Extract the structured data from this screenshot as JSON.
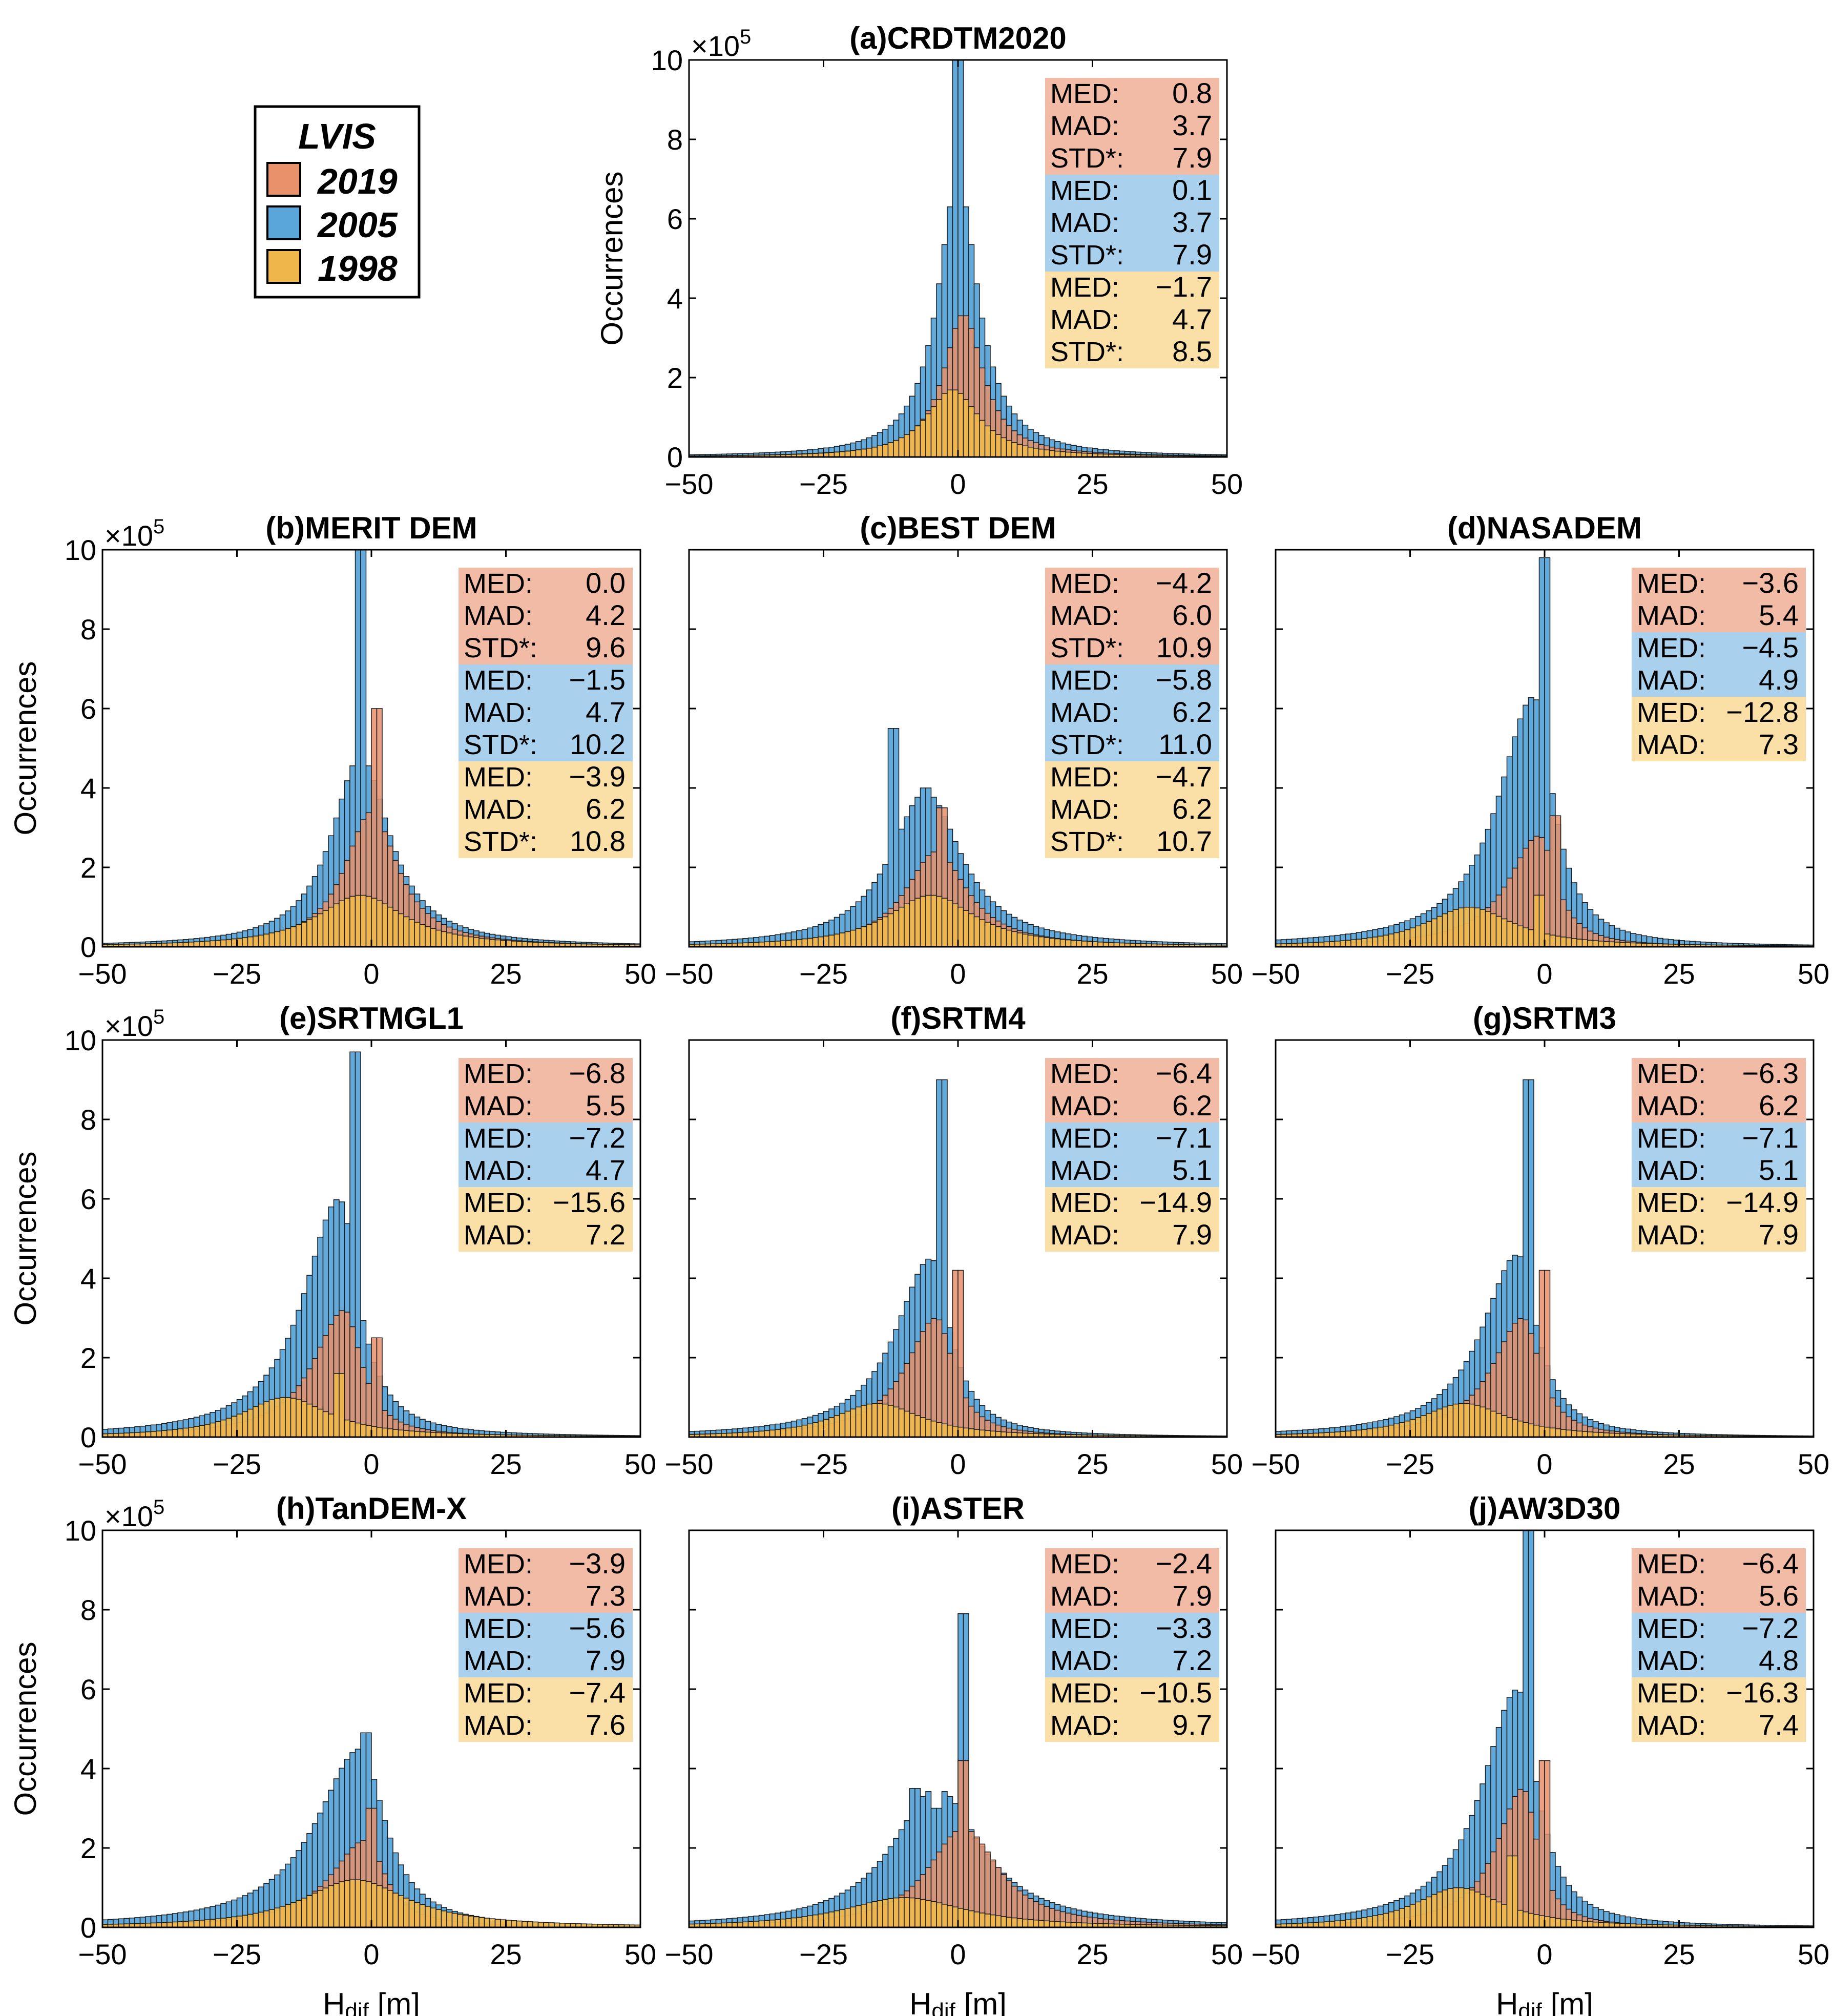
{
  "figure": {
    "legend": {
      "title": "LVIS",
      "entries": [
        {
          "label": "2019",
          "color": "#E8916B"
        },
        {
          "label": "2005",
          "color": "#5AA5D9"
        },
        {
          "label": "1998",
          "color": "#EFB64C"
        }
      ]
    },
    "box_colors": {
      "2019": "#F2BBA6",
      "2005": "#A9D1EE",
      "1998": "#FADFA6"
    },
    "axis_label_y": "Occurrences",
    "axis_label_x_main": "H",
    "axis_label_x_sub": "dif",
    "axis_label_x_unit": " [m]",
    "exponent_base": "×10",
    "exponent_power": "5"
  },
  "chart_data": [
    {
      "type": "bar",
      "title": "(a)CRDTM2020",
      "xlim": [
        -50,
        50
      ],
      "ylim": [
        0,
        10
      ],
      "xticks": [
        "−50",
        "−25",
        "0",
        "25",
        "50"
      ],
      "yticks": [
        "0",
        "2",
        "4",
        "6",
        "8",
        "10"
      ],
      "y_multiplier": "×10^5",
      "stats": [
        {
          "year": "2019",
          "rows": [
            {
              "label": "MED:",
              "value": "0.8"
            },
            {
              "label": "MAD:",
              "value": "3.7"
            },
            {
              "label": "STD*:",
              "value": "7.9"
            }
          ]
        },
        {
          "year": "2005",
          "rows": [
            {
              "label": "MED:",
              "value": "0.1"
            },
            {
              "label": "MAD:",
              "value": "3.7"
            },
            {
              "label": "STD*:",
              "value": "7.9"
            }
          ]
        },
        {
          "year": "1998",
          "rows": [
            {
              "label": "MED:",
              "value": "−1.7"
            },
            {
              "label": "MAD:",
              "value": "4.7"
            },
            {
              "label": "STD*:",
              "value": "8.5"
            }
          ]
        }
      ],
      "series": [
        {
          "name": "2005",
          "peak": 7.0,
          "center": 0,
          "width": 4.5,
          "spikes": [
            [
              0,
              10.0
            ]
          ]
        },
        {
          "name": "2019",
          "peak": 3.6,
          "center": 1,
          "width": 4.5,
          "spikes": []
        },
        {
          "name": "1998",
          "peak": 1.7,
          "center": -1,
          "width": 6,
          "spikes": []
        }
      ]
    },
    {
      "type": "bar",
      "title": "(b)MERIT DEM",
      "xlim": [
        -50,
        50
      ],
      "ylim": [
        0,
        10
      ],
      "xticks": [
        "−50",
        "−25",
        "0",
        "25",
        "50"
      ],
      "yticks": [
        "0",
        "2",
        "4",
        "6",
        "8",
        "10"
      ],
      "y_multiplier": "×10^5",
      "stats": [
        {
          "year": "2019",
          "rows": [
            {
              "label": "MED:",
              "value": "0.0"
            },
            {
              "label": "MAD:",
              "value": "4.2"
            },
            {
              "label": "STD*:",
              "value": "9.6"
            }
          ]
        },
        {
          "year": "2005",
          "rows": [
            {
              "label": "MED:",
              "value": "−1.5"
            },
            {
              "label": "MAD:",
              "value": "4.7"
            },
            {
              "label": "STD*:",
              "value": "10.2"
            }
          ]
        },
        {
          "year": "1998",
          "rows": [
            {
              "label": "MED:",
              "value": "−3.9"
            },
            {
              "label": "MAD:",
              "value": "6.2"
            },
            {
              "label": "STD*:",
              "value": "10.8"
            }
          ]
        }
      ],
      "series": [
        {
          "name": "2005",
          "peak": 4.8,
          "center": -2,
          "width": 6.5,
          "spikes": [
            [
              -2,
              10.0
            ]
          ]
        },
        {
          "name": "2019",
          "peak": 3.4,
          "center": 0,
          "width": 6,
          "spikes": [
            [
              1,
              6.0
            ]
          ]
        },
        {
          "name": "1998",
          "peak": 1.3,
          "center": -2,
          "width": 10,
          "spikes": []
        }
      ]
    },
    {
      "type": "bar",
      "title": "(c)BEST DEM",
      "xlim": [
        -50,
        50
      ],
      "ylim": [
        0,
        10
      ],
      "xticks": [
        "−50",
        "−25",
        "0",
        "25",
        "50"
      ],
      "yticks": [
        "0",
        "2",
        "4",
        "6",
        "8",
        "10"
      ],
      "y_multiplier": "×10^5",
      "stats": [
        {
          "year": "2019",
          "rows": [
            {
              "label": "MED:",
              "value": "−4.2"
            },
            {
              "label": "MAD:",
              "value": "6.0"
            },
            {
              "label": "STD*:",
              "value": "10.9"
            }
          ]
        },
        {
          "year": "2005",
          "rows": [
            {
              "label": "MED:",
              "value": "−5.8"
            },
            {
              "label": "MAD:",
              "value": "6.2"
            },
            {
              "label": "STD*:",
              "value": "11.0"
            }
          ]
        },
        {
          "year": "1998",
          "rows": [
            {
              "label": "MED:",
              "value": "−4.7"
            },
            {
              "label": "MAD:",
              "value": "6.2"
            },
            {
              "label": "STD*:",
              "value": "10.7"
            }
          ]
        }
      ],
      "series": [
        {
          "name": "2005",
          "peak": 3.9,
          "center": -6,
          "width": 8,
          "spikes": [
            [
              -12,
              5.5
            ],
            [
              -6,
              4.0
            ]
          ]
        },
        {
          "name": "2019",
          "peak": 2.4,
          "center": -4,
          "width": 7,
          "spikes": [
            [
              -3,
              3.5
            ]
          ]
        },
        {
          "name": "1998",
          "peak": 1.3,
          "center": -5,
          "width": 10,
          "spikes": []
        }
      ]
    },
    {
      "type": "bar",
      "title": "(d)NASADEM",
      "xlim": [
        -50,
        50
      ],
      "ylim": [
        0,
        10
      ],
      "xticks": [
        "−50",
        "−25",
        "0",
        "25",
        "50"
      ],
      "yticks": [
        "0",
        "2",
        "4",
        "6",
        "8",
        "10"
      ],
      "y_multiplier": "×10^5",
      "stats": [
        {
          "year": "2019",
          "rows": [
            {
              "label": "MED:",
              "value": "−3.6"
            },
            {
              "label": "MAD:",
              "value": "5.4"
            }
          ]
        },
        {
          "year": "2005",
          "rows": [
            {
              "label": "MED:",
              "value": "−4.5"
            },
            {
              "label": "MAD:",
              "value": "4.9"
            }
          ]
        },
        {
          "year": "1998",
          "rows": [
            {
              "label": "MED:",
              "value": "−12.8"
            },
            {
              "label": "MAD:",
              "value": "7.3"
            }
          ]
        }
      ],
      "series": [
        {
          "name": "2005",
          "peak": 6.3,
          "center": -2,
          "width": 8,
          "skew": true,
          "spikes": [
            [
              0,
              9.8
            ]
          ]
        },
        {
          "name": "2019",
          "peak": 2.8,
          "center": -1,
          "width": 7,
          "skew": true,
          "spikes": [
            [
              2,
              3.3
            ]
          ]
        },
        {
          "name": "1998",
          "peak": 1.0,
          "center": -14,
          "width": 10,
          "spikes": [
            [
              -1,
              1.3
            ]
          ]
        }
      ]
    },
    {
      "type": "bar",
      "title": "(e)SRTMGL1",
      "xlim": [
        -50,
        50
      ],
      "ylim": [
        0,
        10
      ],
      "xticks": [
        "−50",
        "−25",
        "0",
        "25",
        "50"
      ],
      "yticks": [
        "0",
        "2",
        "4",
        "6",
        "8",
        "10"
      ],
      "y_multiplier": "×10^5",
      "stats": [
        {
          "year": "2019",
          "rows": [
            {
              "label": "MED:",
              "value": "−6.8"
            },
            {
              "label": "MAD:",
              "value": "5.5"
            }
          ]
        },
        {
          "year": "2005",
          "rows": [
            {
              "label": "MED:",
              "value": "−7.2"
            },
            {
              "label": "MAD:",
              "value": "4.7"
            }
          ]
        },
        {
          "year": "1998",
          "rows": [
            {
              "label": "MED:",
              "value": "−15.6"
            },
            {
              "label": "MAD:",
              "value": "7.2"
            }
          ]
        }
      ],
      "series": [
        {
          "name": "2005",
          "peak": 6.0,
          "center": -6,
          "width": 8,
          "skew": true,
          "spikes": [
            [
              -3,
              9.7
            ]
          ]
        },
        {
          "name": "2019",
          "peak": 3.2,
          "center": -5,
          "width": 7,
          "skew": true,
          "spikes": [
            [
              1,
              2.5
            ]
          ]
        },
        {
          "name": "1998",
          "peak": 1.0,
          "center": -16,
          "width": 10,
          "spikes": [
            [
              -6,
              1.6
            ]
          ]
        }
      ]
    },
    {
      "type": "bar",
      "title": "(f)SRTM4",
      "xlim": [
        -50,
        50
      ],
      "ylim": [
        0,
        10
      ],
      "xticks": [
        "−50",
        "−25",
        "0",
        "25",
        "50"
      ],
      "yticks": [
        "0",
        "2",
        "4",
        "6",
        "8",
        "10"
      ],
      "y_multiplier": "×10^5",
      "stats": [
        {
          "year": "2019",
          "rows": [
            {
              "label": "MED:",
              "value": "−6.4"
            },
            {
              "label": "MAD:",
              "value": "6.2"
            }
          ]
        },
        {
          "year": "2005",
          "rows": [
            {
              "label": "MED:",
              "value": "−7.1"
            },
            {
              "label": "MAD:",
              "value": "5.1"
            }
          ]
        },
        {
          "year": "1998",
          "rows": [
            {
              "label": "MED:",
              "value": "−14.9"
            },
            {
              "label": "MAD:",
              "value": "7.9"
            }
          ]
        }
      ],
      "series": [
        {
          "name": "2005",
          "peak": 4.5,
          "center": -5,
          "width": 8,
          "skew": true,
          "spikes": [
            [
              -3,
              9.0
            ]
          ]
        },
        {
          "name": "2019",
          "peak": 3.0,
          "center": -4,
          "width": 7,
          "skew": true,
          "spikes": [
            [
              0,
              4.2
            ]
          ]
        },
        {
          "name": "1998",
          "peak": 0.85,
          "center": -15,
          "width": 10,
          "spikes": []
        }
      ]
    },
    {
      "type": "bar",
      "title": "(g)SRTM3",
      "xlim": [
        -50,
        50
      ],
      "ylim": [
        0,
        10
      ],
      "xticks": [
        "−50",
        "−25",
        "0",
        "25",
        "50"
      ],
      "yticks": [
        "0",
        "2",
        "4",
        "6",
        "8",
        "10"
      ],
      "y_multiplier": "×10^5",
      "stats": [
        {
          "year": "2019",
          "rows": [
            {
              "label": "MED:",
              "value": "−6.3"
            },
            {
              "label": "MAD:",
              "value": "6.2"
            }
          ]
        },
        {
          "year": "2005",
          "rows": [
            {
              "label": "MED:",
              "value": "−7.1"
            },
            {
              "label": "MAD:",
              "value": "5.1"
            }
          ]
        },
        {
          "year": "1998",
          "rows": [
            {
              "label": "MED:",
              "value": "−14.9"
            },
            {
              "label": "MAD:",
              "value": "7.9"
            }
          ]
        }
      ],
      "series": [
        {
          "name": "2005",
          "peak": 4.6,
          "center": -5,
          "width": 8,
          "skew": true,
          "spikes": [
            [
              -3,
              9.0
            ]
          ]
        },
        {
          "name": "2019",
          "peak": 3.0,
          "center": -4,
          "width": 7,
          "skew": true,
          "spikes": [
            [
              0,
              4.2
            ]
          ]
        },
        {
          "name": "1998",
          "peak": 0.85,
          "center": -15,
          "width": 10,
          "spikes": []
        }
      ]
    },
    {
      "type": "bar",
      "title": "(h)TanDEM-X",
      "xlim": [
        -50,
        50
      ],
      "ylim": [
        0,
        10
      ],
      "xticks": [
        "−50",
        "−25",
        "0",
        "25",
        "50"
      ],
      "yticks": [
        "0",
        "2",
        "4",
        "6",
        "8",
        "10"
      ],
      "y_multiplier": "×10^5",
      "stats": [
        {
          "year": "2019",
          "rows": [
            {
              "label": "MED:",
              "value": "−3.9"
            },
            {
              "label": "MAD:",
              "value": "7.3"
            }
          ]
        },
        {
          "year": "2005",
          "rows": [
            {
              "label": "MED:",
              "value": "−5.6"
            },
            {
              "label": "MAD:",
              "value": "7.9"
            }
          ]
        },
        {
          "year": "1998",
          "rows": [
            {
              "label": "MED:",
              "value": "−7.4"
            },
            {
              "label": "MAD:",
              "value": "7.6"
            }
          ]
        }
      ],
      "series": [
        {
          "name": "2005",
          "peak": 4.5,
          "center": -2,
          "width": 10,
          "skew": true,
          "spikes": [
            [
              -1,
              4.9
            ]
          ]
        },
        {
          "name": "2019",
          "peak": 2.2,
          "center": -1,
          "width": 8,
          "skew": true,
          "spikes": [
            [
              0,
              3.0
            ]
          ]
        },
        {
          "name": "1998",
          "peak": 1.2,
          "center": -3,
          "width": 12,
          "spikes": []
        }
      ]
    },
    {
      "type": "bar",
      "title": "(i)ASTER",
      "xlim": [
        -50,
        50
      ],
      "ylim": [
        0,
        10
      ],
      "xticks": [
        "−50",
        "−25",
        "0",
        "25",
        "50"
      ],
      "yticks": [
        "0",
        "2",
        "4",
        "6",
        "8",
        "10"
      ],
      "y_multiplier": "×10^5",
      "stats": [
        {
          "year": "2019",
          "rows": [
            {
              "label": "MED:",
              "value": "−2.4"
            },
            {
              "label": "MAD:",
              "value": "7.9"
            }
          ]
        },
        {
          "year": "2005",
          "rows": [
            {
              "label": "MED:",
              "value": "−3.3"
            },
            {
              "label": "MAD:",
              "value": "7.2"
            }
          ]
        },
        {
          "year": "1998",
          "rows": [
            {
              "label": "MED:",
              "value": "−10.5"
            },
            {
              "label": "MAD:",
              "value": "9.7"
            }
          ]
        }
      ],
      "series": [
        {
          "name": "2005",
          "peak": 3.5,
          "center": -4,
          "width": 10,
          "spikes": [
            [
              1,
              7.9
            ],
            [
              -8,
              3.5
            ],
            [
              -4,
              3.0
            ]
          ]
        },
        {
          "name": "2019",
          "peak": 2.5,
          "center": 1,
          "width": 8,
          "spikes": [
            [
              1,
              4.2
            ]
          ]
        },
        {
          "name": "1998",
          "peak": 0.75,
          "center": -10,
          "width": 14,
          "spikes": []
        }
      ]
    },
    {
      "type": "bar",
      "title": "(j)AW3D30",
      "xlim": [
        -50,
        50
      ],
      "ylim": [
        0,
        10
      ],
      "xticks": [
        "−50",
        "−25",
        "0",
        "25",
        "50"
      ],
      "yticks": [
        "0",
        "2",
        "4",
        "6",
        "8",
        "10"
      ],
      "y_multiplier": "×10^5",
      "stats": [
        {
          "year": "2019",
          "rows": [
            {
              "label": "MED:",
              "value": "−6.4"
            },
            {
              "label": "MAD:",
              "value": "5.6"
            }
          ]
        },
        {
          "year": "2005",
          "rows": [
            {
              "label": "MED:",
              "value": "−7.2"
            },
            {
              "label": "MAD:",
              "value": "4.8"
            }
          ]
        },
        {
          "year": "1998",
          "rows": [
            {
              "label": "MED:",
              "value": "−16.3"
            },
            {
              "label": "MAD:",
              "value": "7.4"
            }
          ]
        }
      ],
      "series": [
        {
          "name": "2005",
          "peak": 6.0,
          "center": -5,
          "width": 8,
          "skew": true,
          "spikes": [
            [
              -3,
              10.0
            ]
          ]
        },
        {
          "name": "2019",
          "peak": 3.5,
          "center": -4,
          "width": 6,
          "skew": true,
          "spikes": [
            [
              0,
              4.2
            ]
          ]
        },
        {
          "name": "1998",
          "peak": 1.0,
          "center": -16,
          "width": 10,
          "spikes": [
            [
              -6,
              1.8
            ]
          ]
        }
      ]
    }
  ]
}
